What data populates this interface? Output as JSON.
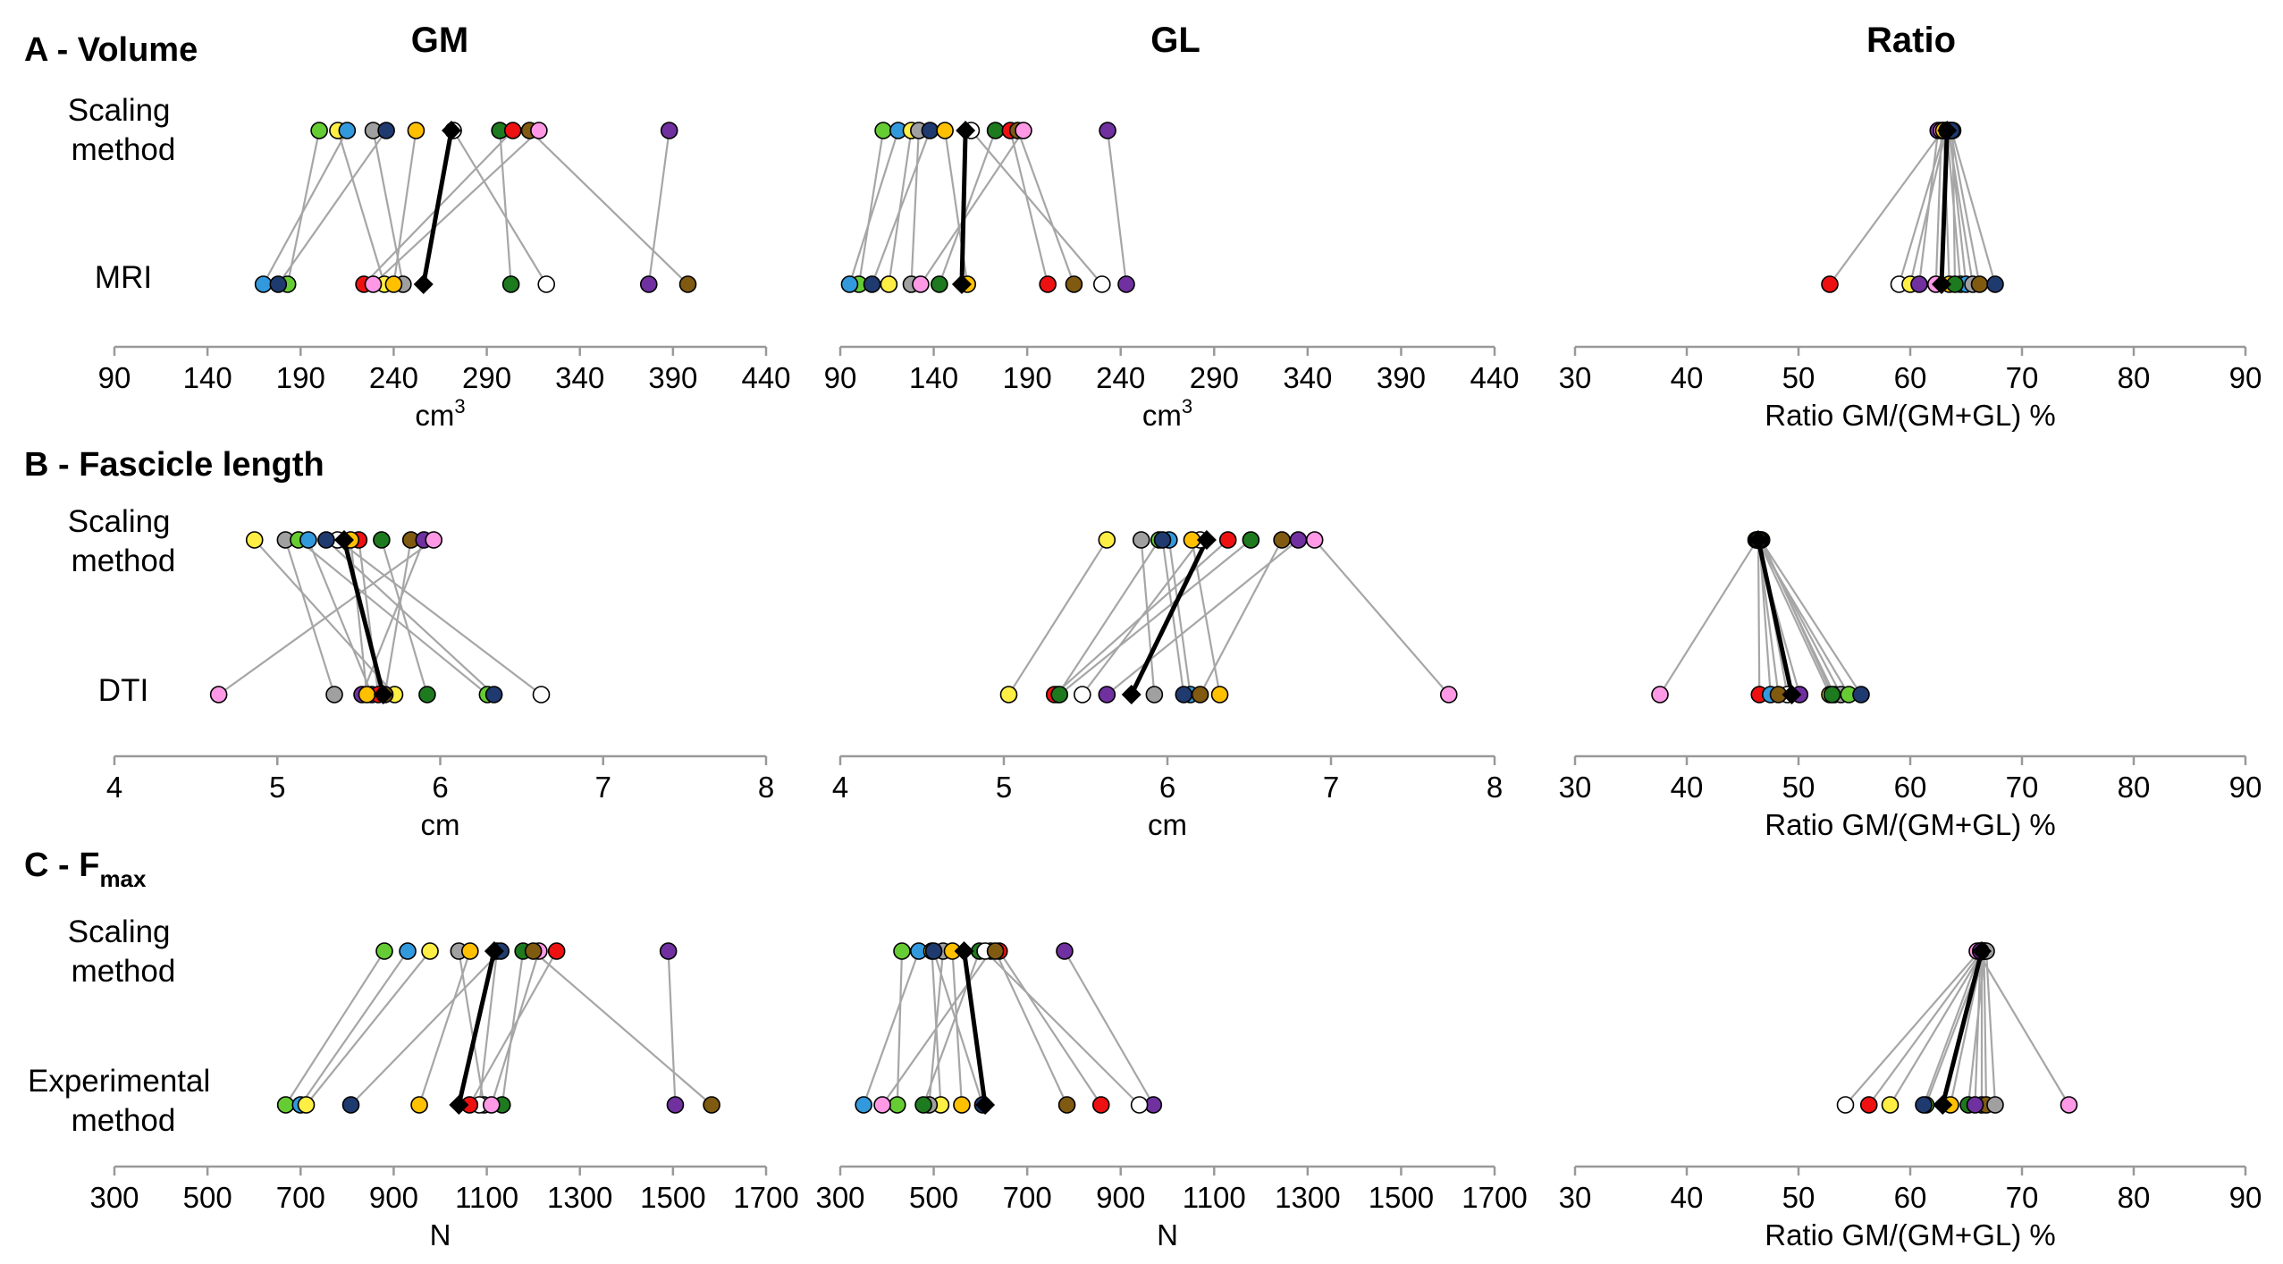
{
  "columns": [
    "GM",
    "GL",
    "Ratio"
  ],
  "colors": {
    "lime": "#66CC33",
    "blue": "#3399DD",
    "yellow": "#FFEE44",
    "gray": "#A0A0A0",
    "navy": "#1F3A6E",
    "gold": "#FFC000",
    "green": "#1E7A1E",
    "red": "#EE1111",
    "brown": "#7F5A10",
    "pink": "#FF99E6",
    "purple": "#7030A0",
    "white": "#FFFFFF",
    "mean": "#000000",
    "link": "#A6A6A6"
  },
  "chart_data": [
    {
      "section": "A - Volume",
      "column": "GM",
      "type": "scatter",
      "top_label": [
        "Scaling",
        "method"
      ],
      "bottom_label": [
        "MRI"
      ],
      "xlabel": "cm",
      "xlabel_sup": "3",
      "xlim": [
        90,
        440
      ],
      "xticks": [
        "90",
        "140",
        "190",
        "240",
        "290",
        "340",
        "390",
        "440"
      ],
      "mean": {
        "top": 271,
        "bottom": 256
      },
      "points": [
        {
          "color": "lime",
          "top": 200,
          "bottom": 183
        },
        {
          "color": "yellow",
          "top": 210,
          "bottom": 235
        },
        {
          "color": "blue",
          "top": 215,
          "bottom": 170
        },
        {
          "color": "gray",
          "top": 229,
          "bottom": 245
        },
        {
          "color": "navy",
          "top": 236,
          "bottom": 178
        },
        {
          "color": "gold",
          "top": 252,
          "bottom": 240
        },
        {
          "color": "green",
          "top": 297,
          "bottom": 303
        },
        {
          "color": "red",
          "top": 304,
          "bottom": 224
        },
        {
          "color": "brown",
          "top": 313,
          "bottom": 398
        },
        {
          "color": "pink",
          "top": 318,
          "bottom": 229
        },
        {
          "color": "purple",
          "top": 388,
          "bottom": 377
        },
        {
          "color": "white",
          "top": 272,
          "bottom": 322
        }
      ]
    },
    {
      "section": "A - Volume",
      "column": "GL",
      "type": "scatter",
      "xlabel": "cm",
      "xlabel_sup": "3",
      "xlim": [
        90,
        440
      ],
      "xticks": [
        "90",
        "140",
        "190",
        "240",
        "290",
        "340",
        "390",
        "440"
      ],
      "mean": {
        "top": 157,
        "bottom": 155
      },
      "points": [
        {
          "color": "lime",
          "top": 113,
          "bottom": 100
        },
        {
          "color": "blue",
          "top": 121,
          "bottom": 95
        },
        {
          "color": "yellow",
          "top": 128,
          "bottom": 116
        },
        {
          "color": "gray",
          "top": 132,
          "bottom": 128
        },
        {
          "color": "navy",
          "top": 138,
          "bottom": 107
        },
        {
          "color": "gold",
          "top": 146,
          "bottom": 158
        },
        {
          "color": "green",
          "top": 173,
          "bottom": 143
        },
        {
          "color": "red",
          "top": 181,
          "bottom": 201
        },
        {
          "color": "brown",
          "top": 185,
          "bottom": 215
        },
        {
          "color": "pink",
          "top": 188,
          "bottom": 133
        },
        {
          "color": "purple",
          "top": 233,
          "bottom": 243
        },
        {
          "color": "white",
          "top": 160,
          "bottom": 230
        }
      ]
    },
    {
      "section": "A - Volume",
      "column": "Ratio",
      "type": "scatter",
      "xlabel": "Ratio GM/(GM+GL) %",
      "xlim": [
        30,
        90
      ],
      "xticks": [
        "30",
        "40",
        "50",
        "60",
        "70",
        "80",
        "90"
      ],
      "mean": {
        "top": 63.3,
        "bottom": 62.8
      },
      "points": [
        {
          "color": "red",
          "top": 62.9,
          "bottom": 52.8
        },
        {
          "color": "white",
          "top": 63.1,
          "bottom": 59.0
        },
        {
          "color": "yellow",
          "top": 63.2,
          "bottom": 60.0
        },
        {
          "color": "purple",
          "top": 62.5,
          "bottom": 60.8
        },
        {
          "color": "pink",
          "top": 62.8,
          "bottom": 62.3
        },
        {
          "color": "gold",
          "top": 63.0,
          "bottom": 63.5
        },
        {
          "color": "lime",
          "top": 63.3,
          "bottom": 64.5
        },
        {
          "color": "blue",
          "top": 63.5,
          "bottom": 65.0
        },
        {
          "color": "gray",
          "top": 63.4,
          "bottom": 65.6
        },
        {
          "color": "green",
          "top": 63.8,
          "bottom": 64.0
        },
        {
          "color": "brown",
          "top": 63.6,
          "bottom": 66.2
        },
        {
          "color": "navy",
          "top": 63.7,
          "bottom": 67.6
        }
      ]
    },
    {
      "section": "B - Fascicle length",
      "column": "GM",
      "type": "scatter",
      "top_label": [
        "Scaling",
        "method"
      ],
      "bottom_label": [
        "DTI"
      ],
      "xlabel": "cm",
      "xlim": [
        4,
        8
      ],
      "xticks": [
        "4",
        "5",
        "6",
        "7",
        "8"
      ],
      "mean": {
        "top": 5.41,
        "bottom": 5.65
      },
      "points": [
        {
          "color": "yellow",
          "top": 4.86,
          "bottom": 5.72
        },
        {
          "color": "gray",
          "top": 5.05,
          "bottom": 5.35
        },
        {
          "color": "lime",
          "top": 5.13,
          "bottom": 6.29
        },
        {
          "color": "blue",
          "top": 5.19,
          "bottom": 5.58
        },
        {
          "color": "white",
          "top": 5.37,
          "bottom": 6.62
        },
        {
          "color": "red",
          "top": 5.5,
          "bottom": 5.62
        },
        {
          "color": "green",
          "top": 5.64,
          "bottom": 5.92
        },
        {
          "color": "brown",
          "top": 5.82,
          "bottom": 5.66
        },
        {
          "color": "purple",
          "top": 5.9,
          "bottom": 5.52
        },
        {
          "color": "pink",
          "top": 5.96,
          "bottom": 4.64
        },
        {
          "color": "navy",
          "top": 5.3,
          "bottom": 6.33
        },
        {
          "color": "gold",
          "top": 5.45,
          "bottom": 5.55
        }
      ]
    },
    {
      "section": "B - Fascicle length",
      "column": "GL",
      "type": "scatter",
      "xlabel": "cm",
      "xlim": [
        4,
        8
      ],
      "xticks": [
        "4",
        "5",
        "6",
        "7",
        "8"
      ],
      "mean": {
        "top": 6.24,
        "bottom": 5.78
      },
      "points": [
        {
          "color": "yellow",
          "top": 5.63,
          "bottom": 5.03
        },
        {
          "color": "gray",
          "top": 5.84,
          "bottom": 5.92
        },
        {
          "color": "lime",
          "top": 5.95,
          "bottom": 5.33
        },
        {
          "color": "blue",
          "top": 6.01,
          "bottom": 6.14
        },
        {
          "color": "white",
          "top": 6.2,
          "bottom": 5.48
        },
        {
          "color": "red",
          "top": 6.37,
          "bottom": 5.31
        },
        {
          "color": "green",
          "top": 6.51,
          "bottom": 5.34
        },
        {
          "color": "brown",
          "top": 6.7,
          "bottom": 6.2
        },
        {
          "color": "purple",
          "top": 6.8,
          "bottom": 5.63
        },
        {
          "color": "pink",
          "top": 6.9,
          "bottom": 7.72
        },
        {
          "color": "gold",
          "top": 6.15,
          "bottom": 6.32
        },
        {
          "color": "navy",
          "top": 5.97,
          "bottom": 6.1
        }
      ]
    },
    {
      "section": "B - Fascicle length",
      "column": "Ratio",
      "type": "scatter",
      "xlabel": "Ratio GM/(GM+GL) %",
      "xlim": [
        30,
        90
      ],
      "xticks": [
        "30",
        "40",
        "50",
        "60",
        "70",
        "80",
        "90"
      ],
      "mean": {
        "top": 46.4,
        "bottom": 49.4
      },
      "points": [
        {
          "color": "pink",
          "top": 46.3,
          "bottom": 37.6
        },
        {
          "color": "red",
          "top": 46.4,
          "bottom": 46.5
        },
        {
          "color": "blue",
          "top": 46.5,
          "bottom": 47.5
        },
        {
          "color": "purple",
          "top": 46.2,
          "bottom": 50.1
        },
        {
          "color": "yellow",
          "top": 46.4,
          "bottom": 52.8
        },
        {
          "color": "gold",
          "top": 46.6,
          "bottom": 53.2
        },
        {
          "color": "gray",
          "top": 46.5,
          "bottom": 53.8
        },
        {
          "color": "lime",
          "top": 46.3,
          "bottom": 54.5
        },
        {
          "color": "green",
          "top": 46.7,
          "bottom": 53.0
        },
        {
          "color": "navy",
          "top": 46.6,
          "bottom": 55.6
        },
        {
          "color": "white",
          "top": 46.5,
          "bottom": 49.0
        },
        {
          "color": "brown",
          "top": 46.4,
          "bottom": 48.2
        }
      ]
    },
    {
      "section": "C - F",
      "section_sub": "max",
      "column": "GM",
      "type": "scatter",
      "top_label": [
        "Scaling",
        "method"
      ],
      "bottom_label": [
        "Experimental",
        "method"
      ],
      "xlabel": "N",
      "xlim": [
        300,
        1700
      ],
      "xticks": [
        "300",
        "500",
        "700",
        "900",
        "1100",
        "1300",
        "1500",
        "1700"
      ],
      "mean": {
        "top": 1116,
        "bottom": 1040
      },
      "points": [
        {
          "color": "lime",
          "top": 880,
          "bottom": 668
        },
        {
          "color": "blue",
          "top": 930,
          "bottom": 700
        },
        {
          "color": "yellow",
          "top": 978,
          "bottom": 712
        },
        {
          "color": "gray",
          "top": 1040,
          "bottom": 1094
        },
        {
          "color": "gold",
          "top": 1064,
          "bottom": 955
        },
        {
          "color": "white",
          "top": 1122,
          "bottom": 1084
        },
        {
          "color": "green",
          "top": 1178,
          "bottom": 1133
        },
        {
          "color": "pink",
          "top": 1212,
          "bottom": 1110
        },
        {
          "color": "red",
          "top": 1250,
          "bottom": 1063
        },
        {
          "color": "purple",
          "top": 1490,
          "bottom": 1505
        },
        {
          "color": "navy",
          "top": 1130,
          "bottom": 808
        },
        {
          "color": "brown",
          "top": 1200,
          "bottom": 1583
        }
      ]
    },
    {
      "section": "C - F",
      "section_sub": "max",
      "column": "GL",
      "type": "scatter",
      "xlabel": "N",
      "xlim": [
        300,
        1700
      ],
      "xticks": [
        "300",
        "500",
        "700",
        "900",
        "1100",
        "1300",
        "1500",
        "1700"
      ],
      "mean": {
        "top": 565,
        "bottom": 610
      },
      "points": [
        {
          "color": "lime",
          "top": 432,
          "bottom": 422
        },
        {
          "color": "blue",
          "top": 468,
          "bottom": 350
        },
        {
          "color": "yellow",
          "top": 496,
          "bottom": 515
        },
        {
          "color": "gray",
          "top": 520,
          "bottom": 490
        },
        {
          "color": "gold",
          "top": 540,
          "bottom": 560
        },
        {
          "color": "green",
          "top": 598,
          "bottom": 478
        },
        {
          "color": "red",
          "top": 640,
          "bottom": 858
        },
        {
          "color": "pink",
          "top": 622,
          "bottom": 390
        },
        {
          "color": "purple",
          "top": 780,
          "bottom": 970
        },
        {
          "color": "white",
          "top": 610,
          "bottom": 940
        },
        {
          "color": "brown",
          "top": 632,
          "bottom": 785
        },
        {
          "color": "navy",
          "top": 500,
          "bottom": 605
        }
      ]
    },
    {
      "section": "C - F",
      "section_sub": "max",
      "column": "Ratio",
      "type": "scatter",
      "xlabel": "Ratio GM/(GM+GL) %",
      "xlim": [
        30,
        90
      ],
      "xticks": [
        "30",
        "40",
        "50",
        "60",
        "70",
        "80",
        "90"
      ],
      "mean": {
        "top": 66.4,
        "bottom": 62.9
      },
      "points": [
        {
          "color": "white",
          "top": 66.2,
          "bottom": 54.2
        },
        {
          "color": "red",
          "top": 66.4,
          "bottom": 56.3
        },
        {
          "color": "yellow",
          "top": 66.5,
          "bottom": 58.2
        },
        {
          "color": "lime",
          "top": 66.6,
          "bottom": 61.4
        },
        {
          "color": "navy",
          "top": 66.3,
          "bottom": 61.2
        },
        {
          "color": "gold",
          "top": 66.5,
          "bottom": 63.6
        },
        {
          "color": "green",
          "top": 66.7,
          "bottom": 65.2
        },
        {
          "color": "blue",
          "top": 66.4,
          "bottom": 66.4
        },
        {
          "color": "brown",
          "top": 66.6,
          "bottom": 66.8
        },
        {
          "color": "gray",
          "top": 66.8,
          "bottom": 67.6
        },
        {
          "color": "pink",
          "top": 66.0,
          "bottom": 74.2
        },
        {
          "color": "purple",
          "top": 66.3,
          "bottom": 65.8
        }
      ]
    }
  ]
}
